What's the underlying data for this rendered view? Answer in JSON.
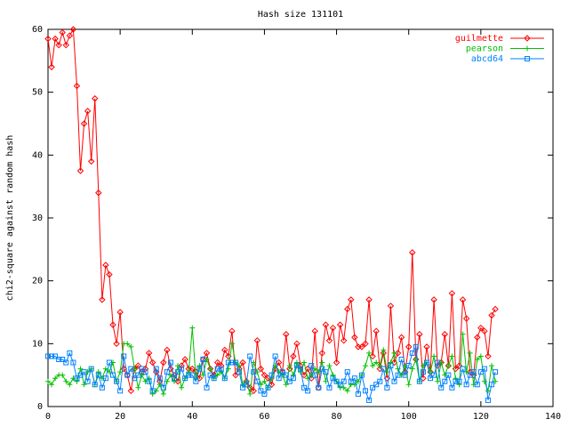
{
  "chart_data": {
    "type": "line",
    "title": "Hash size 131101",
    "ylabel": "chi2-square against random hash",
    "x": [
      0,
      1,
      2,
      3,
      4,
      5,
      6,
      7,
      8,
      9,
      10,
      11,
      12,
      13,
      14,
      15,
      16,
      17,
      18,
      19,
      20,
      21,
      22,
      23,
      24,
      25,
      26,
      27,
      28,
      29,
      30,
      31,
      32,
      33,
      34,
      35,
      36,
      37,
      38,
      39,
      40,
      41,
      42,
      43,
      44,
      45,
      46,
      47,
      48,
      49,
      50,
      51,
      52,
      53,
      54,
      55,
      56,
      57,
      58,
      59,
      60,
      61,
      62,
      63,
      64,
      65,
      66,
      67,
      68,
      69,
      70,
      71,
      72,
      73,
      74,
      75,
      76,
      77,
      78,
      79,
      80,
      81,
      82,
      83,
      84,
      85,
      86,
      87,
      88,
      89,
      90,
      91,
      92,
      93,
      94,
      95,
      96,
      97,
      98,
      99,
      100,
      101,
      102,
      103,
      104,
      105,
      106,
      107,
      108,
      109,
      110,
      111,
      112,
      113,
      114,
      115,
      116,
      117,
      118,
      119,
      120,
      121,
      122,
      123,
      124
    ],
    "series": [
      {
        "name": "guilmette",
        "color": "#ff0000",
        "marker": "diamond",
        "values": [
          58.5,
          54,
          58.5,
          57.5,
          59.5,
          57.5,
          59,
          60,
          51,
          37.5,
          45,
          47,
          39,
          49,
          34,
          17,
          22.5,
          21,
          13,
          10,
          15,
          6,
          5,
          2.5,
          6,
          6.5,
          5.5,
          6,
          8.5,
          7,
          5.5,
          4,
          7,
          9,
          6,
          5,
          4,
          6.5,
          7.5,
          6,
          6,
          5.5,
          4.5,
          7.5,
          8.5,
          6,
          5,
          7,
          6.5,
          9,
          8,
          12,
          5,
          6,
          7,
          4,
          3,
          2.5,
          10.5,
          6,
          5,
          4.5,
          3.5,
          6,
          7,
          5.5,
          11.5,
          6,
          8,
          10,
          6.5,
          5,
          6,
          4.5,
          12,
          3,
          8.5,
          13,
          10.5,
          12.5,
          7,
          13,
          10.5,
          15.5,
          17,
          11,
          9.5,
          9.5,
          10,
          17,
          8,
          12,
          6,
          8.5,
          4.5,
          16,
          7,
          8.5,
          11,
          5.5,
          9.5,
          24.5,
          7.5,
          11.5,
          4.5,
          9.5,
          5.5,
          17,
          6.5,
          7,
          11.5,
          6.5,
          18,
          6,
          6.5,
          17,
          14,
          5.5,
          5,
          11,
          12.5,
          12,
          8,
          14.5,
          15.5
        ]
      },
      {
        "name": "pearson",
        "color": "#00c000",
        "marker": "plus",
        "values": [
          4,
          3.5,
          4.5,
          5,
          5,
          4,
          3.5,
          4.5,
          4,
          6,
          3.5,
          5.5,
          6,
          3.5,
          5.5,
          4.5,
          6,
          5.5,
          7,
          4,
          5.5,
          10,
          10,
          9.5,
          6,
          3,
          5,
          4,
          4.5,
          2,
          2.5,
          3.5,
          2,
          4,
          5,
          4,
          6.5,
          3,
          4.5,
          5.5,
          12.5,
          4.5,
          6.5,
          5,
          7.5,
          6,
          4.5,
          5,
          5.5,
          4.5,
          6,
          10,
          7,
          6.5,
          3.5,
          4,
          2,
          7,
          5.5,
          3.5,
          4,
          3,
          4.5,
          6.5,
          5.5,
          5,
          3.5,
          6.5,
          5,
          7,
          5.5,
          7,
          4.5,
          5,
          6,
          5.5,
          7,
          4,
          6.5,
          5,
          4,
          3,
          3,
          2.5,
          3.5,
          3.5,
          4,
          5,
          6.5,
          8.5,
          6.5,
          7,
          6.5,
          9,
          5.5,
          7,
          8.5,
          6,
          5,
          6.5,
          3.5,
          6,
          7.5,
          4,
          6.5,
          7,
          5.5,
          8,
          4,
          7,
          5,
          6.5,
          8,
          4.5,
          3.5,
          11.5,
          5.5,
          8.5,
          3.5,
          7.5,
          8,
          4,
          2.5,
          6.5,
          4
        ]
      },
      {
        "name": "abcd64",
        "color": "#0080ff",
        "marker": "square",
        "values": [
          8,
          8,
          8,
          7.5,
          7.5,
          7,
          8.5,
          7,
          4.5,
          5,
          5.5,
          4,
          6,
          3.5,
          5,
          3,
          4.5,
          7,
          5,
          4,
          2.5,
          8,
          5,
          6,
          4.5,
          5,
          6,
          5.5,
          4,
          2.5,
          6,
          4.5,
          3,
          5.5,
          7,
          4.5,
          5.5,
          6,
          4.5,
          5,
          5,
          4,
          6,
          7.5,
          3,
          5,
          4.5,
          6,
          6,
          4.5,
          7,
          7,
          7,
          5.5,
          3,
          3.5,
          8,
          5.5,
          4,
          2.5,
          2,
          3,
          5,
          8,
          4.5,
          5.5,
          5,
          4,
          4.5,
          6.5,
          6,
          3,
          2.5,
          6.5,
          5,
          3,
          6,
          5.5,
          3,
          4.5,
          4,
          3.5,
          4,
          5.5,
          4,
          4.5,
          2,
          5,
          2.5,
          1,
          3,
          3.5,
          4,
          6,
          3,
          6.5,
          4,
          5,
          7.5,
          5,
          6.5,
          8.5,
          9.5,
          4,
          5.5,
          7,
          4.5,
          5,
          7,
          3,
          4,
          5,
          3,
          4,
          4,
          6,
          3.5,
          5,
          5.5,
          3.5,
          5.5,
          6,
          1,
          3.5,
          5.5
        ]
      }
    ],
    "xlim": [
      0,
      140
    ],
    "xticks": [
      0,
      20,
      40,
      60,
      80,
      100,
      120,
      140
    ],
    "ylim": [
      0,
      60
    ],
    "yticks": [
      0,
      10,
      20,
      30,
      40,
      50,
      60
    ],
    "legend": "top-right"
  }
}
